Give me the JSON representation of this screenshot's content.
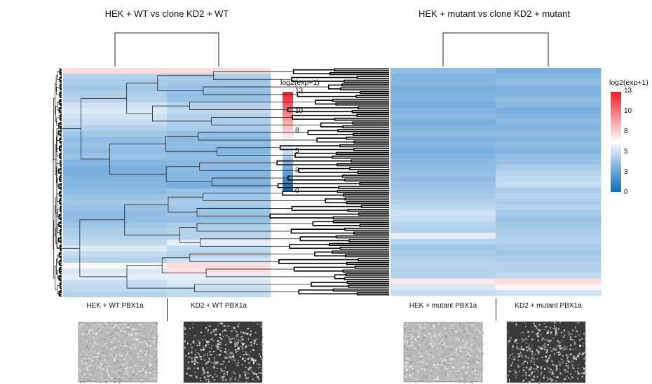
{
  "panels": [
    {
      "title": "HEK + WT vs clone KD2 + WT",
      "columns": [
        "HEK + WT PBX1a",
        "KD2 + WT PBX1a"
      ],
      "micrographs": [
        "micrograph-hek-wt",
        "micrograph-kd2-wt"
      ]
    },
    {
      "title": "HEK + mutant vs clone KD2 + mutant",
      "columns": [
        "HEK + mutant PBX1a",
        "KD2 + mutant PBX1a"
      ],
      "micrographs": [
        "micrograph-hek-mutant",
        "micrograph-kd2-mutant"
      ]
    }
  ],
  "colorscale": {
    "title": "log2(exp+1)",
    "ticks": [
      "13",
      "10",
      "8",
      "5",
      "3",
      "0"
    ],
    "min": 0,
    "max": 13,
    "low_color": "#0A6DC1",
    "mid_color": "#FFFFFF",
    "high_color": "#F21D2A"
  },
  "chart_data": [
    {
      "type": "heatmap",
      "title": "HEK + WT vs clone KD2 + WT",
      "columns": [
        "HEK + WT PBX1a",
        "KD2 + WT PBX1a"
      ],
      "value_range": [
        0,
        13
      ],
      "rows": [
        [
          7.5,
          7.5
        ],
        [
          4.5,
          4.3
        ],
        [
          4.2,
          4.0
        ],
        [
          4.0,
          3.8
        ],
        [
          4.3,
          3.6
        ],
        [
          4.5,
          3.8
        ],
        [
          5.2,
          4.5
        ],
        [
          5.5,
          4.8
        ],
        [
          5.3,
          4.5
        ],
        [
          5.0,
          4.3
        ],
        [
          4.5,
          4.2
        ],
        [
          4.0,
          3.6
        ],
        [
          3.6,
          3.4
        ],
        [
          3.8,
          3.5
        ],
        [
          3.5,
          3.3
        ],
        [
          3.8,
          3.6
        ],
        [
          3.2,
          3.4
        ],
        [
          3.0,
          3.5
        ],
        [
          3.0,
          3.3
        ],
        [
          3.2,
          3.2
        ],
        [
          3.3,
          3.0
        ],
        [
          3.5,
          3.8
        ],
        [
          3.8,
          4.0
        ],
        [
          4.0,
          4.2
        ],
        [
          3.8,
          4.0
        ],
        [
          3.5,
          3.8
        ],
        [
          3.6,
          3.6
        ],
        [
          4.0,
          4.3
        ],
        [
          4.3,
          4.5
        ],
        [
          4.5,
          4.6
        ],
        [
          4.8,
          5.8
        ],
        [
          5.6,
          4.8
        ],
        [
          5.0,
          4.5
        ],
        [
          4.5,
          5.2
        ],
        [
          6.8,
          7.5
        ],
        [
          5.5,
          7.3
        ],
        [
          5.8,
          5.8
        ],
        [
          5.0,
          5.5
        ],
        [
          4.8,
          5.0
        ],
        [
          4.5,
          4.8
        ]
      ]
    },
    {
      "type": "heatmap",
      "title": "HEK + mutant vs clone KD2 + mutant",
      "columns": [
        "HEK + mutant PBX1a",
        "KD2 + mutant PBX1a"
      ],
      "value_range": [
        0,
        13
      ],
      "rows": [
        [
          3.5,
          3.0
        ],
        [
          3.2,
          3.3
        ],
        [
          3.3,
          3.6
        ],
        [
          3.0,
          3.2
        ],
        [
          3.1,
          3.1
        ],
        [
          3.2,
          3.5
        ],
        [
          3.0,
          3.3
        ],
        [
          3.2,
          3.0
        ],
        [
          3.4,
          3.2
        ],
        [
          3.0,
          3.4
        ],
        [
          3.2,
          3.2
        ],
        [
          3.5,
          3.6
        ],
        [
          3.1,
          3.3
        ],
        [
          3.3,
          3.5
        ],
        [
          3.0,
          3.2
        ],
        [
          3.2,
          3.6
        ],
        [
          3.4,
          3.8
        ],
        [
          3.5,
          4.2
        ],
        [
          3.7,
          4.5
        ],
        [
          3.6,
          4.8
        ],
        [
          3.8,
          5.0
        ],
        [
          4.0,
          4.3
        ],
        [
          4.2,
          4.6
        ],
        [
          4.5,
          4.3
        ],
        [
          4.8,
          4.5
        ],
        [
          5.2,
          4.2
        ],
        [
          5.0,
          3.8
        ],
        [
          4.6,
          4.0
        ],
        [
          4.4,
          4.2
        ],
        [
          5.8,
          4.3
        ],
        [
          4.5,
          4.5
        ],
        [
          4.0,
          4.2
        ],
        [
          4.2,
          4.0
        ],
        [
          4.4,
          4.3
        ],
        [
          4.6,
          4.5
        ],
        [
          4.5,
          4.5
        ],
        [
          4.5,
          4.8
        ],
        [
          7.2,
          7.5
        ],
        [
          5.5,
          6.8
        ],
        [
          5.0,
          5.2
        ]
      ]
    }
  ]
}
